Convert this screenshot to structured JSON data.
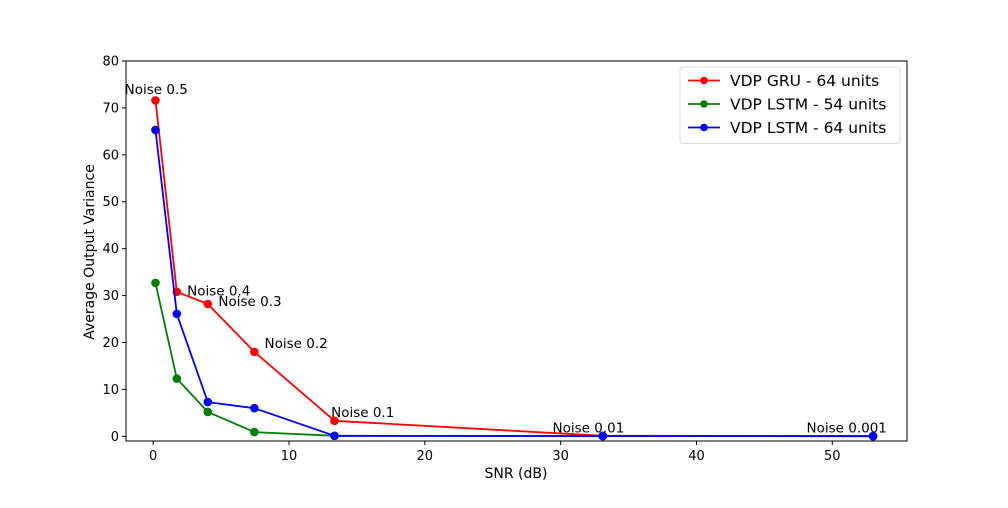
{
  "chart_data": {
    "type": "line",
    "title": "",
    "xlabel": "SNR (dB)",
    "ylabel": "Average Output Variance",
    "xlim": [
      -2,
      55.5
    ],
    "ylim": [
      -1,
      80
    ],
    "xticks": [
      0,
      10,
      20,
      30,
      40,
      50
    ],
    "yticks": [
      0,
      10,
      20,
      30,
      40,
      50,
      60,
      70,
      80
    ],
    "grid": false,
    "legend_position": "top-right",
    "series": [
      {
        "name": "VDP GRU - 64 units",
        "color": "#ff0000",
        "x": [
          0.17,
          1.74,
          4.02,
          7.45,
          13.35,
          33.1,
          53.0
        ],
        "y": [
          71.6,
          30.8,
          28.2,
          18.0,
          3.3,
          0.1,
          0.05
        ]
      },
      {
        "name": "VDP LSTM - 54 units",
        "color": "#008000",
        "x": [
          0.17,
          1.74,
          4.02,
          7.45,
          13.35,
          33.1,
          53.0
        ],
        "y": [
          32.7,
          12.3,
          5.2,
          0.9,
          0.1,
          0.05,
          0.02
        ]
      },
      {
        "name": "VDP LSTM - 64 units",
        "color": "#0000ff",
        "x": [
          0.17,
          1.74,
          4.02,
          7.45,
          13.35,
          33.1,
          53.0
        ],
        "y": [
          65.3,
          26.1,
          7.3,
          6.0,
          0.1,
          0.05,
          0.02
        ]
      }
    ],
    "annotations": [
      {
        "text": "Noise 0.5",
        "x": -2.1,
        "y": 73.0
      },
      {
        "text": "Noise 0.4",
        "x": 2.5,
        "y": 30.0
      },
      {
        "text": "Noise 0.3",
        "x": 4.8,
        "y": 27.8
      },
      {
        "text": "Noise 0.2",
        "x": 8.2,
        "y": 18.8
      },
      {
        "text": "Noise 0.1",
        "x": 13.1,
        "y": 4.1
      },
      {
        "text": "Noise 0.01",
        "x": 29.4,
        "y": 0.8
      },
      {
        "text": "Noise 0.001",
        "x": 48.1,
        "y": 0.8
      }
    ]
  }
}
